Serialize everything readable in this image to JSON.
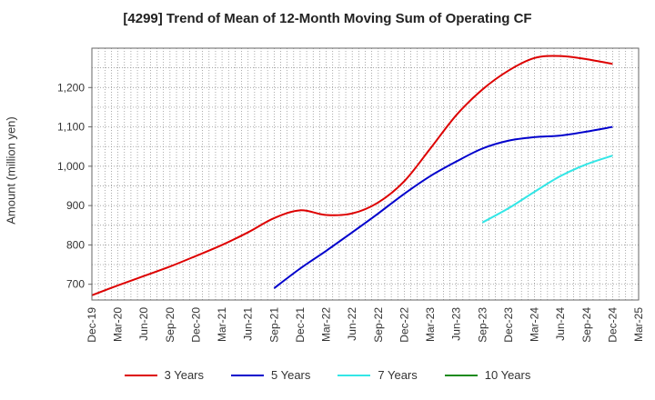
{
  "chart_data": {
    "type": "line",
    "title": "[4299]  Trend of Mean of 12-Month Moving Sum of Operating CF",
    "xlabel": "",
    "ylabel": "Amount (million yen)",
    "ylim": [
      660,
      1300
    ],
    "yticks": [
      700,
      800,
      900,
      "1,000",
      "1,100",
      "1,200"
    ],
    "categories": [
      "Dec-19",
      "Mar-20",
      "Jun-20",
      "Sep-20",
      "Dec-20",
      "Mar-21",
      "Jun-21",
      "Sep-21",
      "Dec-21",
      "Mar-22",
      "Jun-22",
      "Sep-22",
      "Dec-22",
      "Mar-23",
      "Jun-23",
      "Sep-23",
      "Dec-23",
      "Mar-24",
      "Jun-24",
      "Sep-24",
      "Dec-24",
      "Mar-25"
    ],
    "series": [
      {
        "name": "3 Years",
        "color": "#dd0000",
        "values": [
          672,
          697,
          721,
          745,
          772,
          800,
          832,
          868,
          888,
          876,
          880,
          908,
          962,
          1045,
          1130,
          1195,
          1243,
          1275,
          1280,
          1272,
          1260,
          null
        ]
      },
      {
        "name": "5 Years",
        "color": "#0000cc",
        "values": [
          null,
          null,
          null,
          null,
          null,
          null,
          null,
          690,
          740,
          785,
          832,
          880,
          930,
          975,
          1012,
          1045,
          1065,
          1074,
          1078,
          1088,
          1100,
          null
        ]
      },
      {
        "name": "7 Years",
        "color": "#33e6e6",
        "values": [
          null,
          null,
          null,
          null,
          null,
          null,
          null,
          null,
          null,
          null,
          null,
          null,
          null,
          null,
          null,
          857,
          893,
          935,
          975,
          1005,
          1027,
          null
        ]
      },
      {
        "name": "10 Years",
        "color": "#1a8a1a",
        "values": [
          null,
          null,
          null,
          null,
          null,
          null,
          null,
          null,
          null,
          null,
          null,
          null,
          null,
          null,
          null,
          null,
          null,
          null,
          null,
          null,
          null,
          null
        ]
      }
    ],
    "grid": true,
    "legend": "bottom"
  }
}
